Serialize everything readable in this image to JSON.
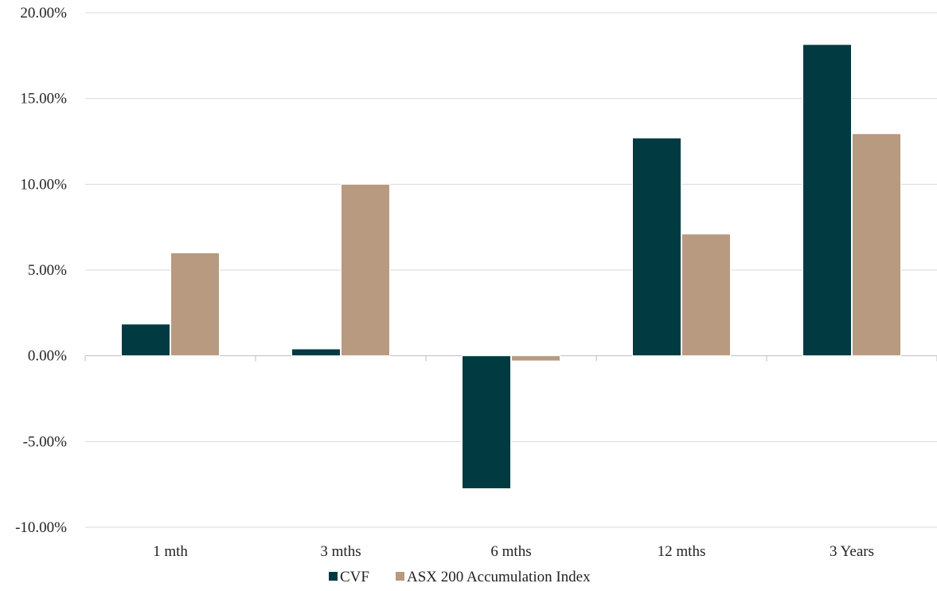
{
  "chart_data": {
    "type": "bar",
    "categories": [
      "1 mth",
      "3 mths",
      "6 mths",
      "12 mths",
      "3 Years"
    ],
    "series": [
      {
        "name": "CVF",
        "values": [
          1.85,
          0.4,
          -7.75,
          12.7,
          18.15
        ],
        "color": "#013A40"
      },
      {
        "name": "ASX 200 Accumulation Index",
        "values": [
          6.0,
          10.0,
          -0.3,
          7.1,
          12.95
        ],
        "color": "#B89A80"
      }
    ],
    "y_ticks": [
      20,
      15,
      10,
      5,
      0,
      -5,
      -10
    ],
    "y_tick_labels": [
      "20.00%",
      "15.00%",
      "10.00%",
      "5.00%",
      "0.00%",
      "-5.00%",
      "-10.00%"
    ],
    "ylim": [
      -10,
      20
    ],
    "grid": true,
    "legend_position": "bottom-center"
  }
}
